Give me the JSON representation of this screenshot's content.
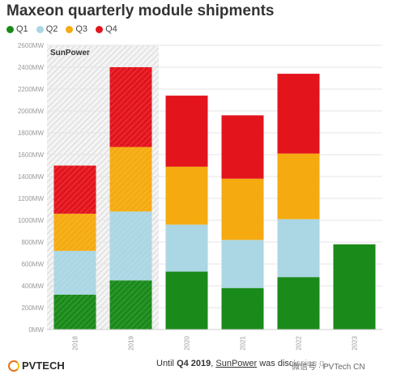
{
  "title": "Maxeon quarterly module shipments",
  "footer": {
    "logo_text": "PVTECH",
    "note_prefix": "Until ",
    "note_q": "Q4 2019",
    "note_mid": ", ",
    "note_company": "SunPower",
    "note_suffix": " was disclosing q...",
    "watermark": "微信号 · PVTech CN"
  },
  "chart_data": {
    "type": "bar",
    "stacked": true,
    "title": "Maxeon quarterly module shipments",
    "categories": [
      "2018",
      "2019",
      "2020",
      "2021",
      "2022",
      "2023"
    ],
    "series": [
      {
        "name": "Q1",
        "color": "#1a8a1a",
        "values": [
          320,
          450,
          530,
          380,
          480,
          780
        ]
      },
      {
        "name": "Q2",
        "color": "#abd6e3",
        "values": [
          400,
          630,
          430,
          440,
          530,
          0
        ]
      },
      {
        "name": "Q3",
        "color": "#f5aa10",
        "values": [
          340,
          590,
          530,
          560,
          600,
          0
        ]
      },
      {
        "name": "Q4",
        "color": "#e3141c",
        "values": [
          440,
          730,
          650,
          580,
          730,
          0
        ]
      }
    ],
    "y_ticks": [
      "0MW",
      "200MW",
      "400MW",
      "600MW",
      "800MW",
      "1000MW",
      "1200MW",
      "1400MW",
      "1600MW",
      "1800MW",
      "2000MW",
      "2200MW",
      "2400MW",
      "2600MW"
    ],
    "ylim": [
      0,
      2600
    ],
    "grid": true,
    "legend": "top-left",
    "shaded_region": {
      "label": "SunPower",
      "categories": [
        "2018",
        "2019"
      ]
    }
  }
}
